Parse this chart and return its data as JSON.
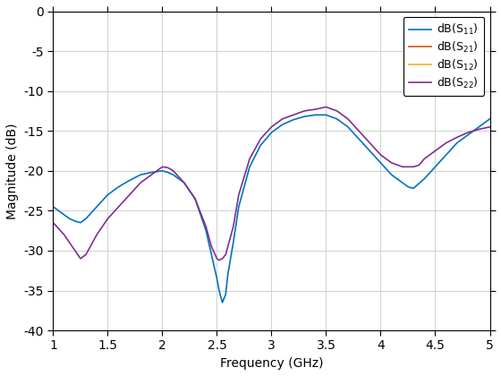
{
  "title": "",
  "xlabel": "Frequency (GHz)",
  "ylabel": "Magnitude (dB)",
  "xlim": [
    1,
    5
  ],
  "ylim": [
    -40,
    0
  ],
  "xticks": [
    1,
    1.5,
    2,
    2.5,
    3,
    3.5,
    4,
    4.5,
    5
  ],
  "yticks": [
    0,
    -5,
    -10,
    -15,
    -20,
    -25,
    -30,
    -35,
    -40
  ],
  "legend_labels": [
    "dB(S$_{11}$)",
    "dB(S$_{21}$)",
    "dB(S$_{12}$)",
    "dB(S$_{22}$)"
  ],
  "colors": [
    "#0072BD",
    "#D95319",
    "#EDB120",
    "#7E2F8E"
  ],
  "background_color": "#FFFFFF",
  "axes_facecolor": "#FFFFFF",
  "grid_color": "#D3D3D3",
  "s11_freq": [
    1.0,
    1.1,
    1.15,
    1.2,
    1.25,
    1.3,
    1.4,
    1.5,
    1.6,
    1.7,
    1.8,
    1.9,
    2.0,
    2.05,
    2.1,
    2.2,
    2.3,
    2.4,
    2.45,
    2.5,
    2.52,
    2.55,
    2.58,
    2.6,
    2.65,
    2.7,
    2.8,
    2.9,
    3.0,
    3.1,
    3.2,
    3.3,
    3.4,
    3.5,
    3.6,
    3.7,
    3.8,
    3.9,
    4.0,
    4.1,
    4.2,
    4.25,
    4.3,
    4.4,
    4.5,
    4.6,
    4.7,
    4.8,
    4.9,
    5.0
  ],
  "s11_vals": [
    -24.5,
    -25.5,
    -26.0,
    -26.3,
    -26.5,
    -26.0,
    -24.5,
    -23.0,
    -22.0,
    -21.2,
    -20.5,
    -20.2,
    -20.0,
    -20.2,
    -20.5,
    -21.5,
    -23.5,
    -27.5,
    -30.5,
    -33.5,
    -35.0,
    -36.5,
    -35.5,
    -33.0,
    -29.0,
    -24.5,
    -19.5,
    -16.8,
    -15.2,
    -14.2,
    -13.6,
    -13.2,
    -13.0,
    -13.0,
    -13.5,
    -14.5,
    -16.0,
    -17.5,
    -19.0,
    -20.5,
    -21.5,
    -22.0,
    -22.2,
    -21.0,
    -19.5,
    -18.0,
    -16.5,
    -15.5,
    -14.5,
    -13.5
  ],
  "s21_freq": [
    1.0,
    2.0,
    3.0,
    4.0,
    5.0
  ],
  "s21_vals": [
    -0.01,
    -0.01,
    -0.02,
    -0.03,
    -0.05
  ],
  "s12_freq": [
    1.0,
    1.5,
    2.0,
    2.5,
    3.0,
    3.5,
    4.0,
    4.5,
    5.0
  ],
  "s12_vals": [
    -0.005,
    -0.005,
    -0.01,
    -0.015,
    -0.02,
    -0.03,
    -0.04,
    -0.06,
    -0.1
  ],
  "s22_freq": [
    1.0,
    1.1,
    1.15,
    1.2,
    1.25,
    1.3,
    1.4,
    1.5,
    1.6,
    1.7,
    1.8,
    1.9,
    2.0,
    2.05,
    2.1,
    2.2,
    2.3,
    2.4,
    2.45,
    2.5,
    2.52,
    2.55,
    2.58,
    2.6,
    2.65,
    2.7,
    2.8,
    2.9,
    3.0,
    3.1,
    3.2,
    3.3,
    3.4,
    3.5,
    3.6,
    3.7,
    3.8,
    3.9,
    4.0,
    4.1,
    4.2,
    4.3,
    4.35,
    4.4,
    4.5,
    4.6,
    4.7,
    4.8,
    4.9,
    5.0
  ],
  "s22_vals": [
    -26.5,
    -28.0,
    -29.0,
    -30.0,
    -31.0,
    -30.5,
    -28.0,
    -26.0,
    -24.5,
    -23.0,
    -21.5,
    -20.5,
    -19.5,
    -19.6,
    -20.0,
    -21.5,
    -23.5,
    -27.0,
    -29.5,
    -31.0,
    -31.2,
    -31.0,
    -30.5,
    -29.5,
    -27.0,
    -23.0,
    -18.5,
    -16.0,
    -14.5,
    -13.5,
    -13.0,
    -12.5,
    -12.3,
    -12.0,
    -12.5,
    -13.5,
    -15.0,
    -16.5,
    -18.0,
    -19.0,
    -19.5,
    -19.5,
    -19.3,
    -18.5,
    -17.5,
    -16.5,
    -15.8,
    -15.2,
    -14.8,
    -14.5
  ]
}
